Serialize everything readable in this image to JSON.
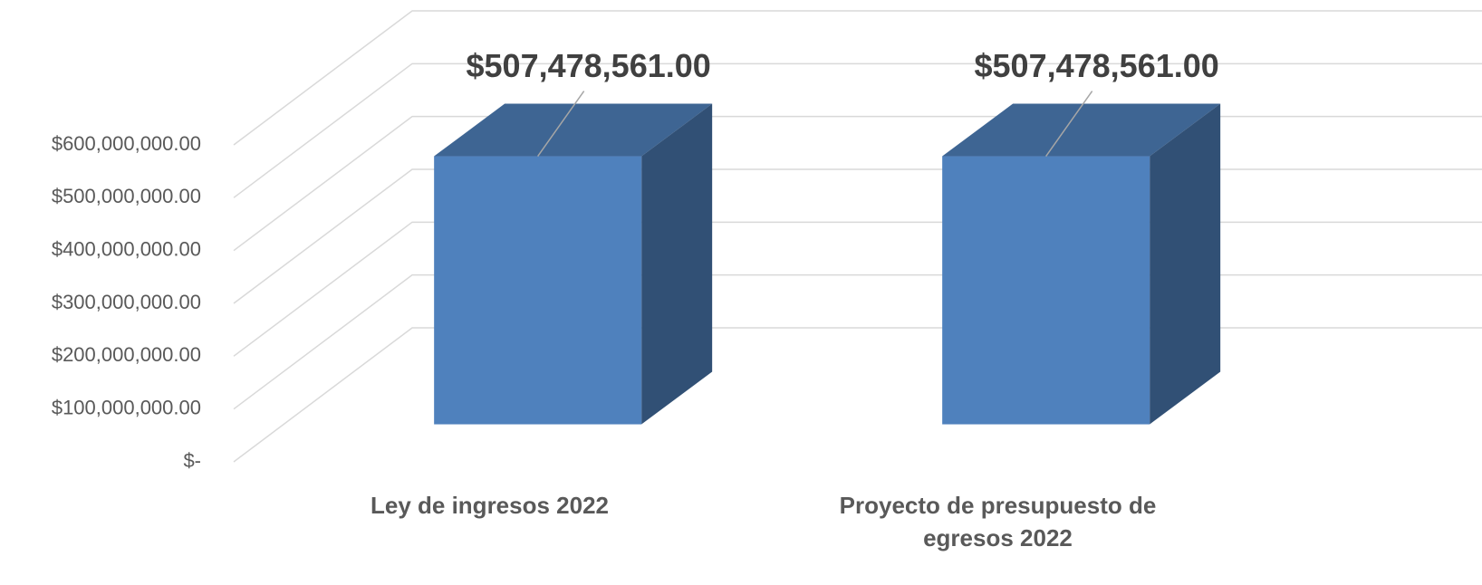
{
  "chart_data": {
    "type": "bar",
    "categories": [
      "Ley de ingresos 2022",
      "Proyecto de presupuesto de egresos 2022"
    ],
    "values": [
      507478561,
      507478561
    ],
    "value_labels": [
      "$507,478,561.00",
      "$507,478,561.00"
    ],
    "color": "#4f81bd",
    "ylim": [
      0,
      600000000
    ],
    "yticks": [
      {
        "value": 0,
        "label": "$-"
      },
      {
        "value": 100000000,
        "label": "$100,000,000.00"
      },
      {
        "value": 200000000,
        "label": "$200,000,000.00"
      },
      {
        "value": 300000000,
        "label": "$300,000,000.00"
      },
      {
        "value": 400000000,
        "label": "$400,000,000.00"
      },
      {
        "value": 500000000,
        "label": "$500,000,000.00"
      },
      {
        "value": 600000000,
        "label": "$600,000,000.00"
      }
    ],
    "grid": true
  }
}
